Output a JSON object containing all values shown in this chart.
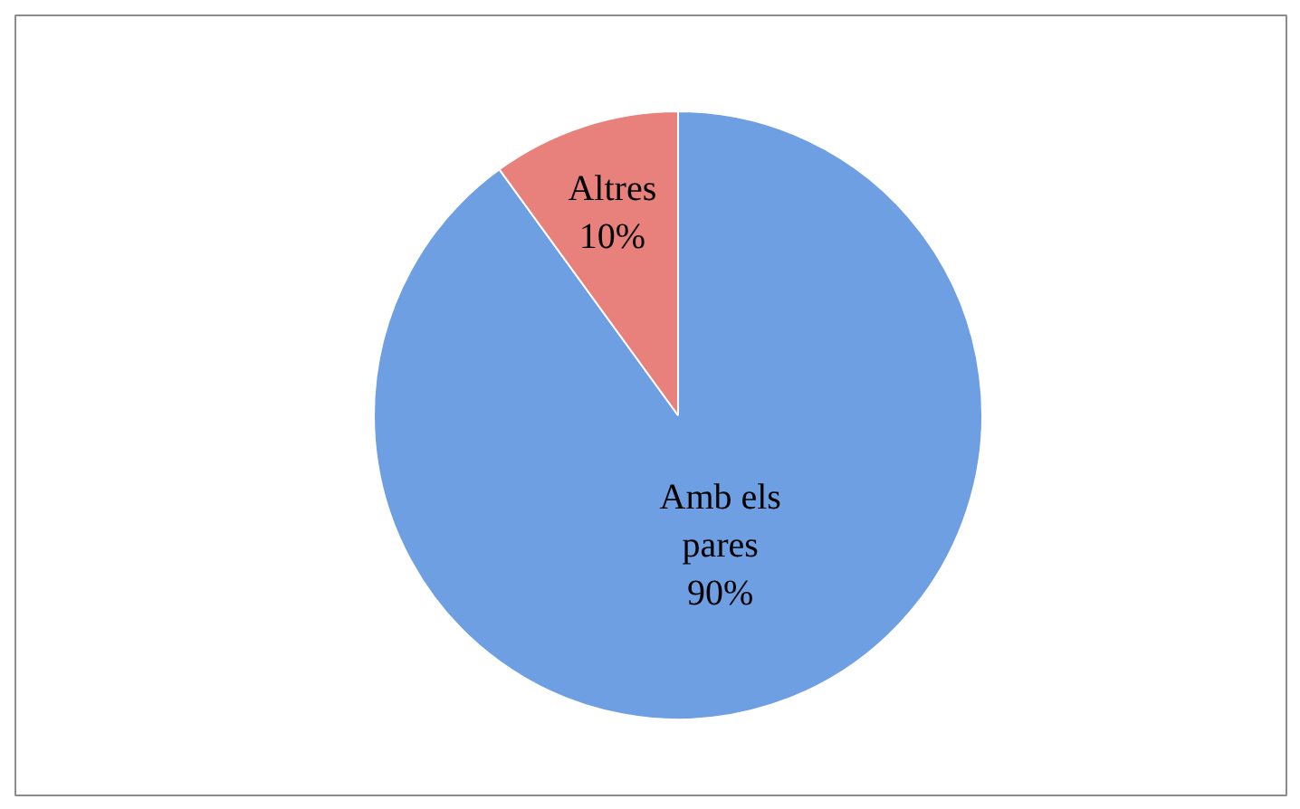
{
  "chart_data": {
    "type": "pie",
    "categories": [
      "Amb els pares",
      "Altres"
    ],
    "values": [
      90,
      10
    ],
    "colors": [
      "#6f9fe3",
      "#e8807c"
    ],
    "value_labels": [
      "90%",
      "10%"
    ]
  }
}
